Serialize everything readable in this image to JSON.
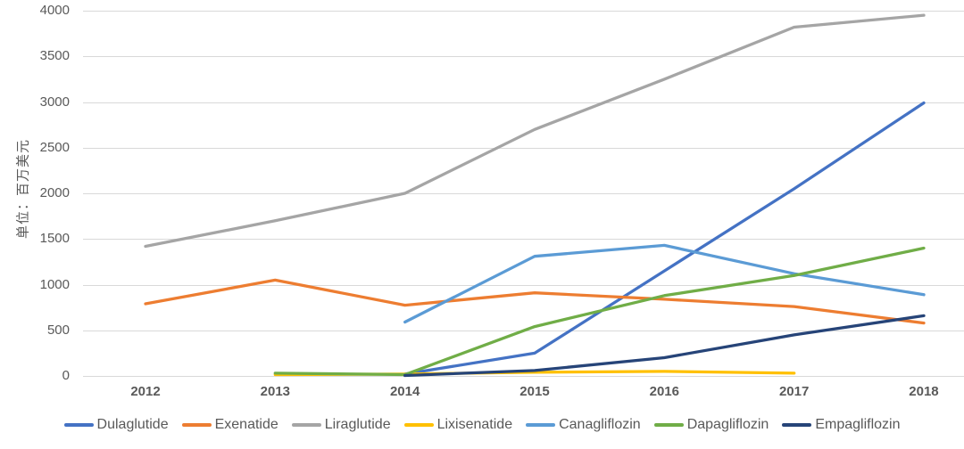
{
  "chart_data": {
    "type": "line",
    "title": "",
    "xlabel": "",
    "ylabel": "单位：百万美元",
    "categories": [
      "2012",
      "2013",
      "2014",
      "2015",
      "2016",
      "2017",
      "2018"
    ],
    "y_ticks": [
      0,
      500,
      1000,
      1500,
      2000,
      2500,
      3000,
      3500,
      4000
    ],
    "ylim": [
      0,
      4000
    ],
    "grid": "horizontal",
    "gridline_color": "#D9D9D9",
    "axis_text_color": "#595959",
    "legend_position": "bottom",
    "series": [
      {
        "name": "Dulaglutide",
        "color": "#4472C4",
        "values": [
          null,
          null,
          20,
          250,
          1150,
          2050,
          2990
        ]
      },
      {
        "name": "Exenatide",
        "color": "#ED7D31",
        "values": [
          790,
          1050,
          775,
          910,
          840,
          760,
          580
        ]
      },
      {
        "name": "Liraglutide",
        "color": "#A5A5A5",
        "values": [
          1420,
          1700,
          2000,
          2700,
          3250,
          3820,
          3950
        ]
      },
      {
        "name": "Lixisenatide",
        "color": "#FFC000",
        "values": [
          null,
          15,
          20,
          40,
          50,
          30,
          null
        ]
      },
      {
        "name": "Canagliflozin",
        "color": "#5B9BD5",
        "values": [
          null,
          null,
          590,
          1310,
          1430,
          1120,
          890
        ]
      },
      {
        "name": "Dapagliflozin",
        "color": "#70AD47",
        "values": [
          null,
          30,
          15,
          540,
          880,
          1100,
          1400
        ]
      },
      {
        "name": "Empagliflozin",
        "color": "#264478",
        "values": [
          null,
          null,
          5,
          60,
          200,
          450,
          660
        ]
      }
    ]
  }
}
